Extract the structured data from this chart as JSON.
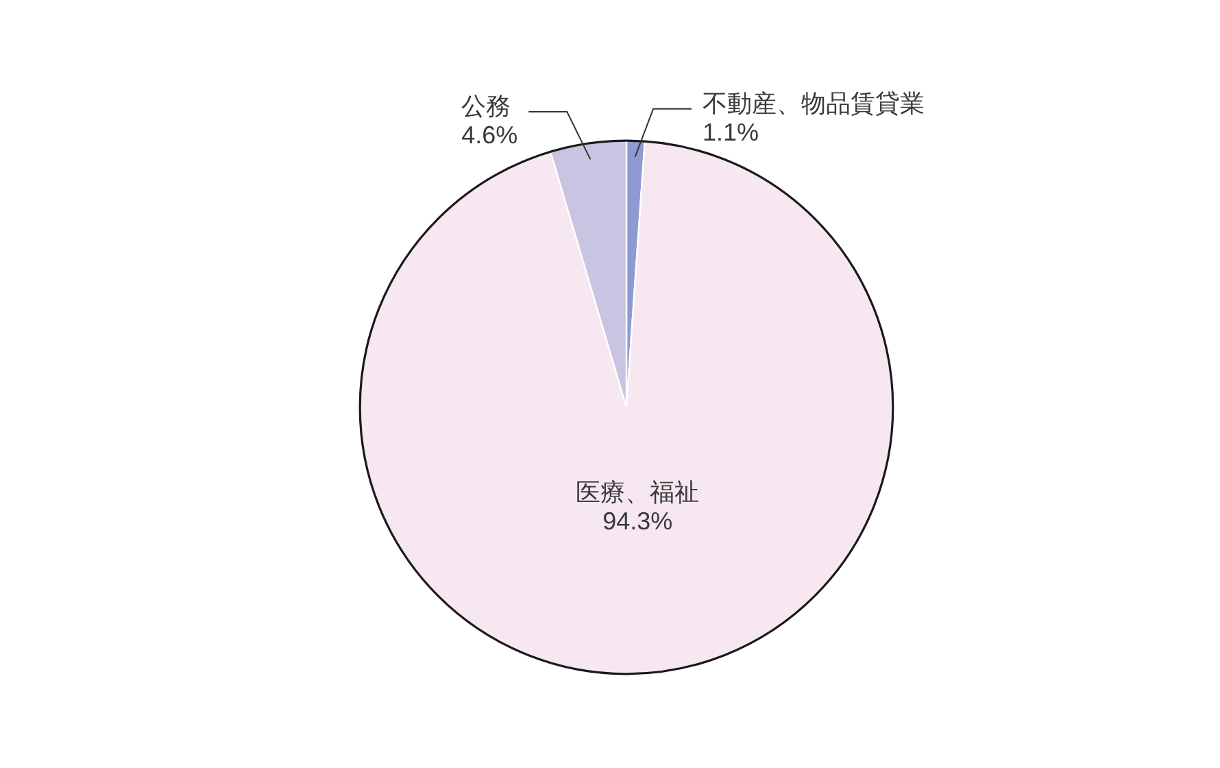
{
  "chart_data": {
    "type": "pie",
    "categories": [
      "不動産、物品賃貸業",
      "医療、福祉",
      "公務"
    ],
    "values": [
      1.1,
      94.3,
      4.6
    ],
    "value_labels": [
      "1.1%",
      "94.3%",
      "4.6%"
    ],
    "colors": [
      "#8e9bd2",
      "#f6e7f0",
      "#c9c4e1"
    ]
  }
}
